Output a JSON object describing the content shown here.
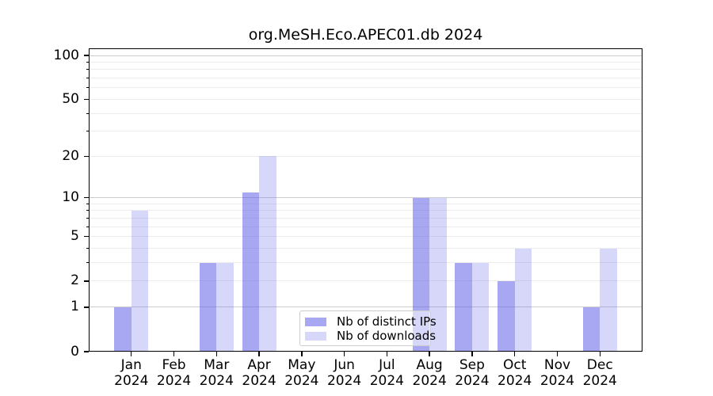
{
  "chart_data": {
    "type": "bar",
    "title": "org.MeSH.Eco.APEC01.db 2024",
    "year": "2024",
    "categories": [
      "Jan",
      "Feb",
      "Mar",
      "Apr",
      "May",
      "Jun",
      "Jul",
      "Aug",
      "Sep",
      "Oct",
      "Nov",
      "Dec"
    ],
    "series": [
      {
        "name": "Nb of distinct IPs",
        "values": [
          1,
          0,
          3,
          11,
          0,
          0,
          0,
          10,
          3,
          2,
          0,
          1
        ]
      },
      {
        "name": "Nb of downloads",
        "values": [
          8,
          0,
          3,
          20,
          0,
          0,
          0,
          10,
          3,
          4,
          0,
          4
        ]
      }
    ],
    "yscale": "log1p",
    "ylim": [
      0,
      112
    ],
    "y_ticks": [
      100,
      50,
      20,
      10,
      5,
      2,
      1,
      0
    ],
    "grid_major": [
      100,
      10,
      1
    ],
    "grid_minor": [
      90,
      80,
      70,
      60,
      50,
      40,
      30,
      20,
      9,
      8,
      7,
      6,
      5,
      4,
      3,
      2
    ],
    "grid": "horizontal",
    "legend_position": "lower center"
  },
  "colors": {
    "bar_base": "#5f5fe8",
    "ips_bar_on_white": "#a9a9f1",
    "downloads_bar_on_white": "#d8d8f9",
    "grid_major": "#cccccc",
    "grid_minor": "#ececec",
    "axis": "#000000"
  }
}
